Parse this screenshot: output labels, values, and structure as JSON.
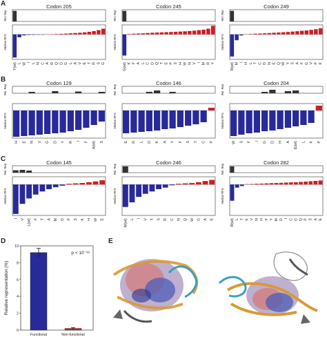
{
  "panel_letters": [
    "A",
    "B",
    "C",
    "D",
    "E"
  ],
  "axis_labels": {
    "rel_rep": "Rel. Rep",
    "median_rfs": "Median RFS"
  },
  "colors": {
    "negative": "#28299a",
    "positive": "#cc1f25",
    "rel_rep_bar": "#333333"
  },
  "chart_data": [
    {
      "type": "bar",
      "group": "A",
      "title": "Codon 205",
      "categories": [
        "Y(wt)",
        "L",
        "W",
        "I",
        "L",
        "N",
        "C",
        "A",
        "R",
        "Q",
        "D",
        "G",
        "L",
        "A",
        "V",
        "E",
        "T",
        "R",
        "S",
        "G"
      ],
      "values": [
        -2.4,
        -0.3,
        -0.1,
        -0.05,
        -0.04,
        -0.03,
        -0.02,
        0.02,
        0.03,
        0.05,
        0.07,
        0.09,
        0.12,
        0.15,
        0.18,
        0.22,
        0.28,
        0.35,
        0.45,
        0.6
      ],
      "rel_rep": [
        0.9,
        0,
        0,
        0,
        0,
        0,
        0,
        0,
        0,
        0,
        0,
        0,
        0,
        0,
        0,
        0,
        0,
        0,
        0,
        0
      ]
    },
    {
      "type": "bar",
      "group": "A",
      "title": "Codon 245",
      "categories": [
        "G(wt)",
        "K",
        "F",
        "A",
        "L",
        "C",
        "D",
        "Q",
        "T",
        "E",
        "P",
        "S",
        "H",
        "W",
        "N",
        "V",
        "I",
        "M",
        "R",
        "Y"
      ],
      "values": [
        -2.2,
        0.05,
        0.08,
        0.1,
        0.12,
        0.15,
        0.18,
        0.2,
        0.22,
        0.24,
        0.26,
        0.28,
        0.3,
        0.33,
        0.36,
        0.4,
        0.45,
        0.5,
        0.6,
        0.9
      ],
      "rel_rep": [
        0.9,
        0,
        0,
        0,
        0,
        0,
        0,
        0,
        0,
        0,
        0,
        0,
        0,
        0,
        0,
        0,
        0,
        0,
        0,
        0
      ]
    },
    {
      "type": "bar",
      "group": "A",
      "title": "Codon 249",
      "categories": [
        "R(wt)",
        "M",
        "I",
        "H",
        "L",
        "T",
        "C",
        "D",
        "N",
        "E",
        "Q",
        "W",
        "Y",
        "S",
        "A",
        "F",
        "G",
        "V",
        "P",
        "K"
      ],
      "values": [
        -2.3,
        -0.6,
        -0.1,
        0.03,
        0.05,
        0.08,
        0.1,
        0.12,
        0.15,
        0.18,
        0.2,
        0.23,
        0.26,
        0.3,
        0.34,
        0.38,
        0.42,
        0.48,
        0.55,
        0.65
      ],
      "rel_rep": [
        0.9,
        0,
        0,
        0,
        0,
        0,
        0,
        0,
        0,
        0,
        0,
        0,
        0,
        0,
        0,
        0,
        0,
        0,
        0,
        0
      ]
    },
    {
      "type": "bar",
      "group": "B",
      "title": "Codon 129",
      "categories": [
        "H",
        "E",
        "N",
        "V",
        "G",
        "D",
        "Y",
        "R",
        "I",
        "F",
        "A(wt)",
        "S"
      ],
      "values": [
        -3.8,
        -3.7,
        -3.6,
        -3.5,
        -3.4,
        -3.3,
        -3.2,
        -3.0,
        -2.8,
        -2.5,
        -2.1,
        -1.6
      ],
      "rel_rep": [
        0,
        0,
        0.2,
        0,
        0,
        0.3,
        0,
        0,
        0.25,
        0,
        0,
        0.2
      ]
    },
    {
      "type": "bar",
      "group": "B",
      "title": "Codon 146",
      "categories": [
        "E",
        "R",
        "L",
        "D",
        "K",
        "A",
        "Y",
        "F",
        "S",
        "T",
        "C",
        "P"
      ],
      "values": [
        -3.3,
        -3.2,
        -3.1,
        -3.0,
        -2.9,
        -2.7,
        -2.6,
        -2.4,
        -2.2,
        -2.0,
        -1.7,
        0.4
      ],
      "rel_rep": [
        0,
        0,
        0,
        0.2,
        0.4,
        0,
        0.2,
        0,
        0,
        0,
        0,
        0
      ]
    },
    {
      "type": "bar",
      "group": "B",
      "title": "Codon 204",
      "categories": [
        "W",
        "S",
        "F",
        "I",
        "G",
        "D",
        "H",
        "A",
        "E(wt)",
        "L",
        "K",
        "P"
      ],
      "values": [
        -3.7,
        -3.5,
        -3.3,
        -3.2,
        -3.0,
        -2.9,
        -2.7,
        -2.5,
        -2.3,
        -2.1,
        -1.8,
        0.7
      ],
      "rel_rep": [
        0,
        0,
        0,
        0,
        0.2,
        0.5,
        0,
        0.3,
        0.4,
        0,
        0,
        0
      ]
    },
    {
      "type": "bar",
      "group": "C",
      "title": "Codon 145",
      "categories": [
        "I",
        "V",
        "L(wt)",
        "F",
        "T",
        "A",
        "M",
        "D",
        "P",
        "S",
        "K",
        "H",
        "W",
        "E"
      ],
      "values": [
        -3.8,
        -2.5,
        -1.8,
        -1.3,
        -0.9,
        -0.6,
        -0.35,
        -0.15,
        0.1,
        0.15,
        0.2,
        0.3,
        0.4,
        0.55
      ],
      "rel_rep": [
        0.35,
        0.4,
        0.3,
        0,
        0,
        0,
        0,
        0,
        0,
        0,
        0,
        0,
        0,
        0
      ]
    },
    {
      "type": "bar",
      "group": "C",
      "title": "Codon 246",
      "categories": [
        "M(wt)",
        "L",
        "I",
        "V",
        "T",
        "S",
        "R",
        "C",
        "N",
        "Q",
        "W",
        "G",
        "A",
        "E"
      ],
      "values": [
        -2.9,
        -2.3,
        -1.6,
        -1.2,
        -0.9,
        -0.6,
        -0.4,
        -0.1,
        0.1,
        0.15,
        0.2,
        0.3,
        0.45,
        0.6
      ],
      "rel_rep": [
        0.9,
        0,
        0,
        0,
        0,
        0,
        0,
        0,
        0,
        0,
        0,
        0,
        0,
        0
      ]
    },
    {
      "type": "bar",
      "group": "C",
      "title": "Codon 282",
      "categories": [
        "R(wt)",
        "L",
        "T",
        "K",
        "V",
        "N",
        "H",
        "F",
        "Y",
        "M",
        "D",
        "I",
        "C",
        "G",
        "Q",
        "P",
        "S",
        "A",
        "E"
      ],
      "values": [
        -2.1,
        -0.4,
        -0.2,
        0.05,
        0.07,
        0.1,
        0.12,
        0.15,
        0.18,
        0.2,
        0.22,
        0.25,
        0.28,
        0.3,
        0.34,
        0.38,
        0.42,
        0.47,
        0.52
      ],
      "rel_rep": [
        0.9,
        0,
        0,
        0,
        0,
        0,
        0,
        0,
        0,
        0,
        0,
        0,
        0,
        0,
        0,
        0,
        0,
        0,
        0
      ]
    },
    {
      "type": "bar",
      "group": "D",
      "categories": [
        "Functional",
        "Non-functional"
      ],
      "values": [
        9.2,
        0.2
      ],
      "errors": [
        0.5,
        0.1
      ],
      "ylabel": "Relative representation (%)",
      "ylim": [
        0,
        10
      ],
      "yticks": [
        0,
        2,
        4,
        6,
        8,
        10
      ],
      "annotation": "p < 10⁻³⁸"
    }
  ]
}
